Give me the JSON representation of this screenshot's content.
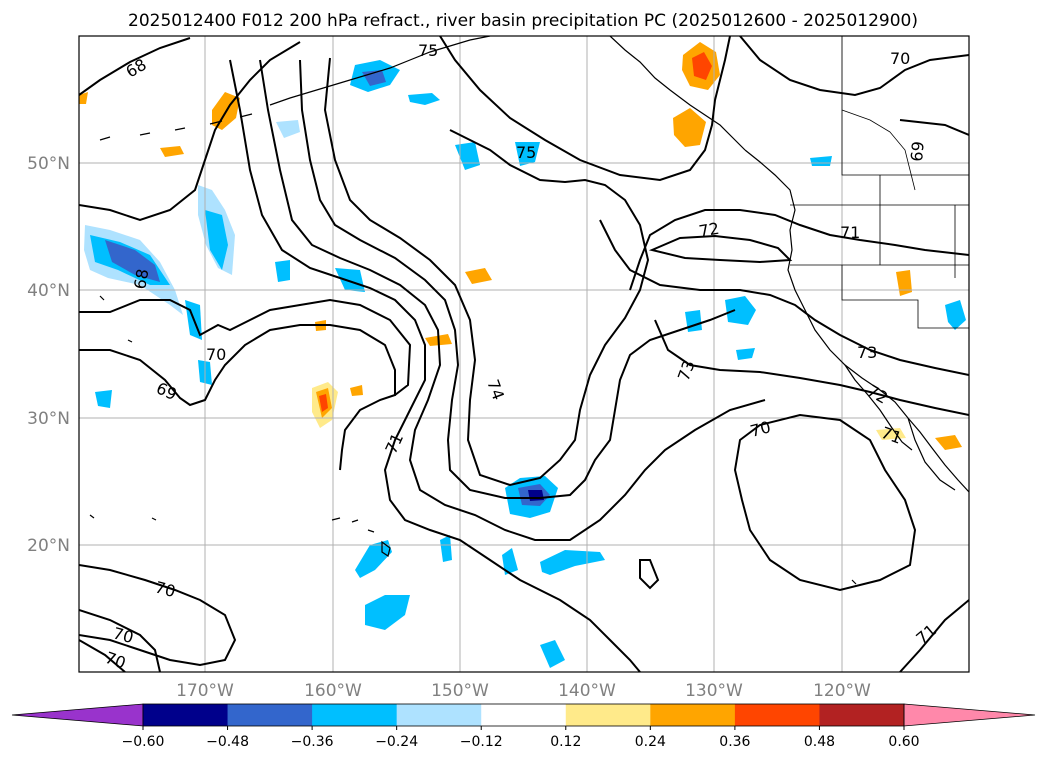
{
  "title": "2025012400 F012 200 hPa refract., river basin precipitation PC (2025012600 - 2025012900)",
  "lat_labels": [
    "50°N",
    "40°N",
    "30°N",
    "20°N"
  ],
  "lon_labels": [
    "170°W",
    "160°W",
    "150°W",
    "140°W",
    "130°W",
    "120°W"
  ],
  "colorbar": {
    "ticks": [
      "−0.60",
      "−0.48",
      "−0.36",
      "−0.24",
      "−0.12",
      "0.12",
      "0.24",
      "0.36",
      "0.48",
      "0.60"
    ],
    "colors": [
      "#9933cc",
      "#00008b",
      "#3366cc",
      "#00bfff",
      "#aee2ff",
      "#ffffff",
      "#ffea8a",
      "#ffa500",
      "#ff4500",
      "#b22222",
      "#ff88aa"
    ]
  },
  "contour_labels": {
    "c68": "68",
    "c75a": "75",
    "c75b": "75",
    "c70a": "70",
    "c69a": "69",
    "c68b": "68",
    "c70b": "70",
    "c69b": "69",
    "c74": "74",
    "c71a": "71",
    "c72": "72",
    "c71b": "71",
    "c73a": "73",
    "c73b": "73",
    "c72b": "72",
    "c70c": "70",
    "c71c": "71",
    "c70d": "70",
    "c70e": "70",
    "c70f": "70",
    "c71d": "71"
  },
  "chart_data": {
    "type": "map",
    "projection": "cylindrical",
    "lon_range": [
      -180,
      -110
    ],
    "lat_range": [
      10,
      60
    ],
    "field": "200 hPa refractivity contours",
    "shaded_field": "river basin precipitation PC",
    "shading_levels": [
      -0.6,
      -0.48,
      -0.36,
      -0.24,
      -0.12,
      0.12,
      0.24,
      0.36,
      0.48,
      0.6
    ],
    "grid": true
  }
}
